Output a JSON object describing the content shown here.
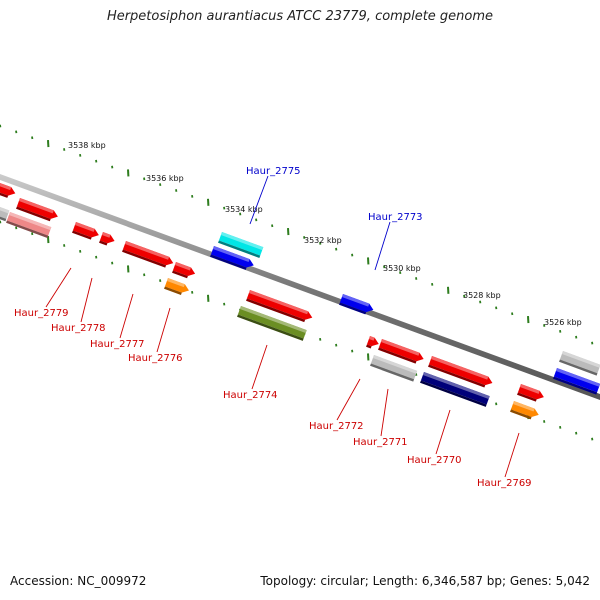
{
  "title": "Herpetosiphon aurantiacus ATCC 23779, complete genome",
  "footer": {
    "accession": "Accession: NC_009972",
    "topology": "Topology: circular; Length: 6,346,587 bp; Genes: 5,042"
  },
  "ticks": [
    {
      "label": "3538 kbp"
    },
    {
      "label": "3536 kbp"
    },
    {
      "label": "3534 kbp"
    },
    {
      "label": "3532 kbp"
    },
    {
      "label": "3530 kbp"
    },
    {
      "label": "3528 kbp"
    },
    {
      "label": "3526 kbp"
    }
  ],
  "gene_labels": [
    {
      "id": "Haur_2775",
      "color": "#0000cc",
      "side": "top"
    },
    {
      "id": "Haur_2773",
      "color": "#0000cc",
      "side": "top"
    },
    {
      "id": "Haur_2779",
      "color": "#cc0000",
      "side": "bottom"
    },
    {
      "id": "Haur_2778",
      "color": "#cc0000",
      "side": "bottom"
    },
    {
      "id": "Haur_2777",
      "color": "#cc0000",
      "side": "bottom"
    },
    {
      "id": "Haur_2776",
      "color": "#cc0000",
      "side": "bottom"
    },
    {
      "id": "Haur_2774",
      "color": "#cc0000",
      "side": "bottom"
    },
    {
      "id": "Haur_2772",
      "color": "#cc0000",
      "side": "bottom"
    },
    {
      "id": "Haur_2771",
      "color": "#cc0000",
      "side": "bottom"
    },
    {
      "id": "Haur_2770",
      "color": "#cc0000",
      "side": "bottom"
    },
    {
      "id": "Haur_2769",
      "color": "#cc0000",
      "side": "bottom"
    }
  ],
  "colors": {
    "backbone": "#888888",
    "tick": "#2e7d1e",
    "red_gene": "#ee0000",
    "pink_gene": "#ee8888",
    "grey_gene": "#bbbbbb",
    "blue_gene": "#0000ee",
    "cyan_gene": "#00e6e6",
    "navy_gene": "#00007a",
    "orange_gene": "#ff8800",
    "olive_gene": "#6b8e23"
  }
}
